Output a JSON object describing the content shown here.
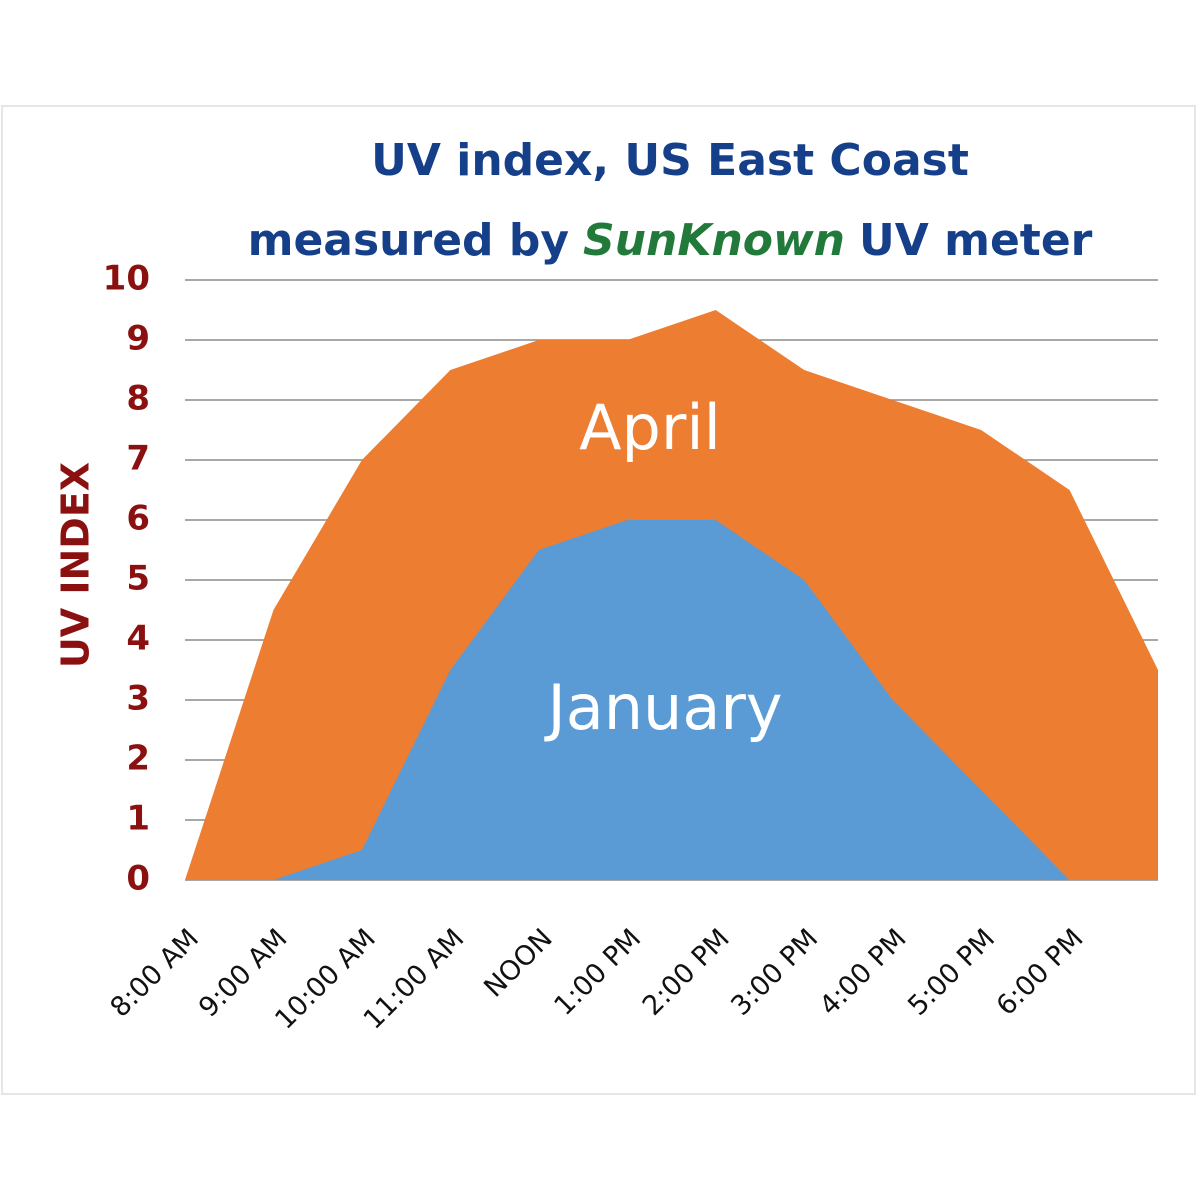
{
  "chart_data": {
    "type": "area",
    "title_lines": [
      "UV index, US East Coast",
      "measured by",
      "SunKnown",
      "UV meter"
    ],
    "y_label": "UV INDEX",
    "categories": [
      "8:00 AM",
      "9:00 AM",
      "10:00 AM",
      "11:00 AM",
      "NOON",
      "1:00 PM",
      "2:00 PM",
      "3:00 PM",
      "4:00 PM",
      "5:00 PM",
      "6:00 PM",
      null
    ],
    "series": [
      {
        "name": "April",
        "color": "#ed7d31",
        "values": [
          0,
          4.5,
          7,
          8.5,
          9,
          9,
          9.5,
          8.5,
          8,
          7.5,
          6.5,
          3.5
        ]
      },
      {
        "name": "January",
        "color": "#5b9bd5",
        "values": [
          0,
          0,
          0.5,
          3.5,
          5.5,
          6,
          6,
          5,
          3,
          1.5,
          0,
          0
        ]
      }
    ],
    "ylim": [
      0,
      10
    ],
    "yticks": [
      0,
      1,
      2,
      3,
      4,
      5,
      6,
      7,
      8,
      9,
      10
    ],
    "grid": true
  }
}
